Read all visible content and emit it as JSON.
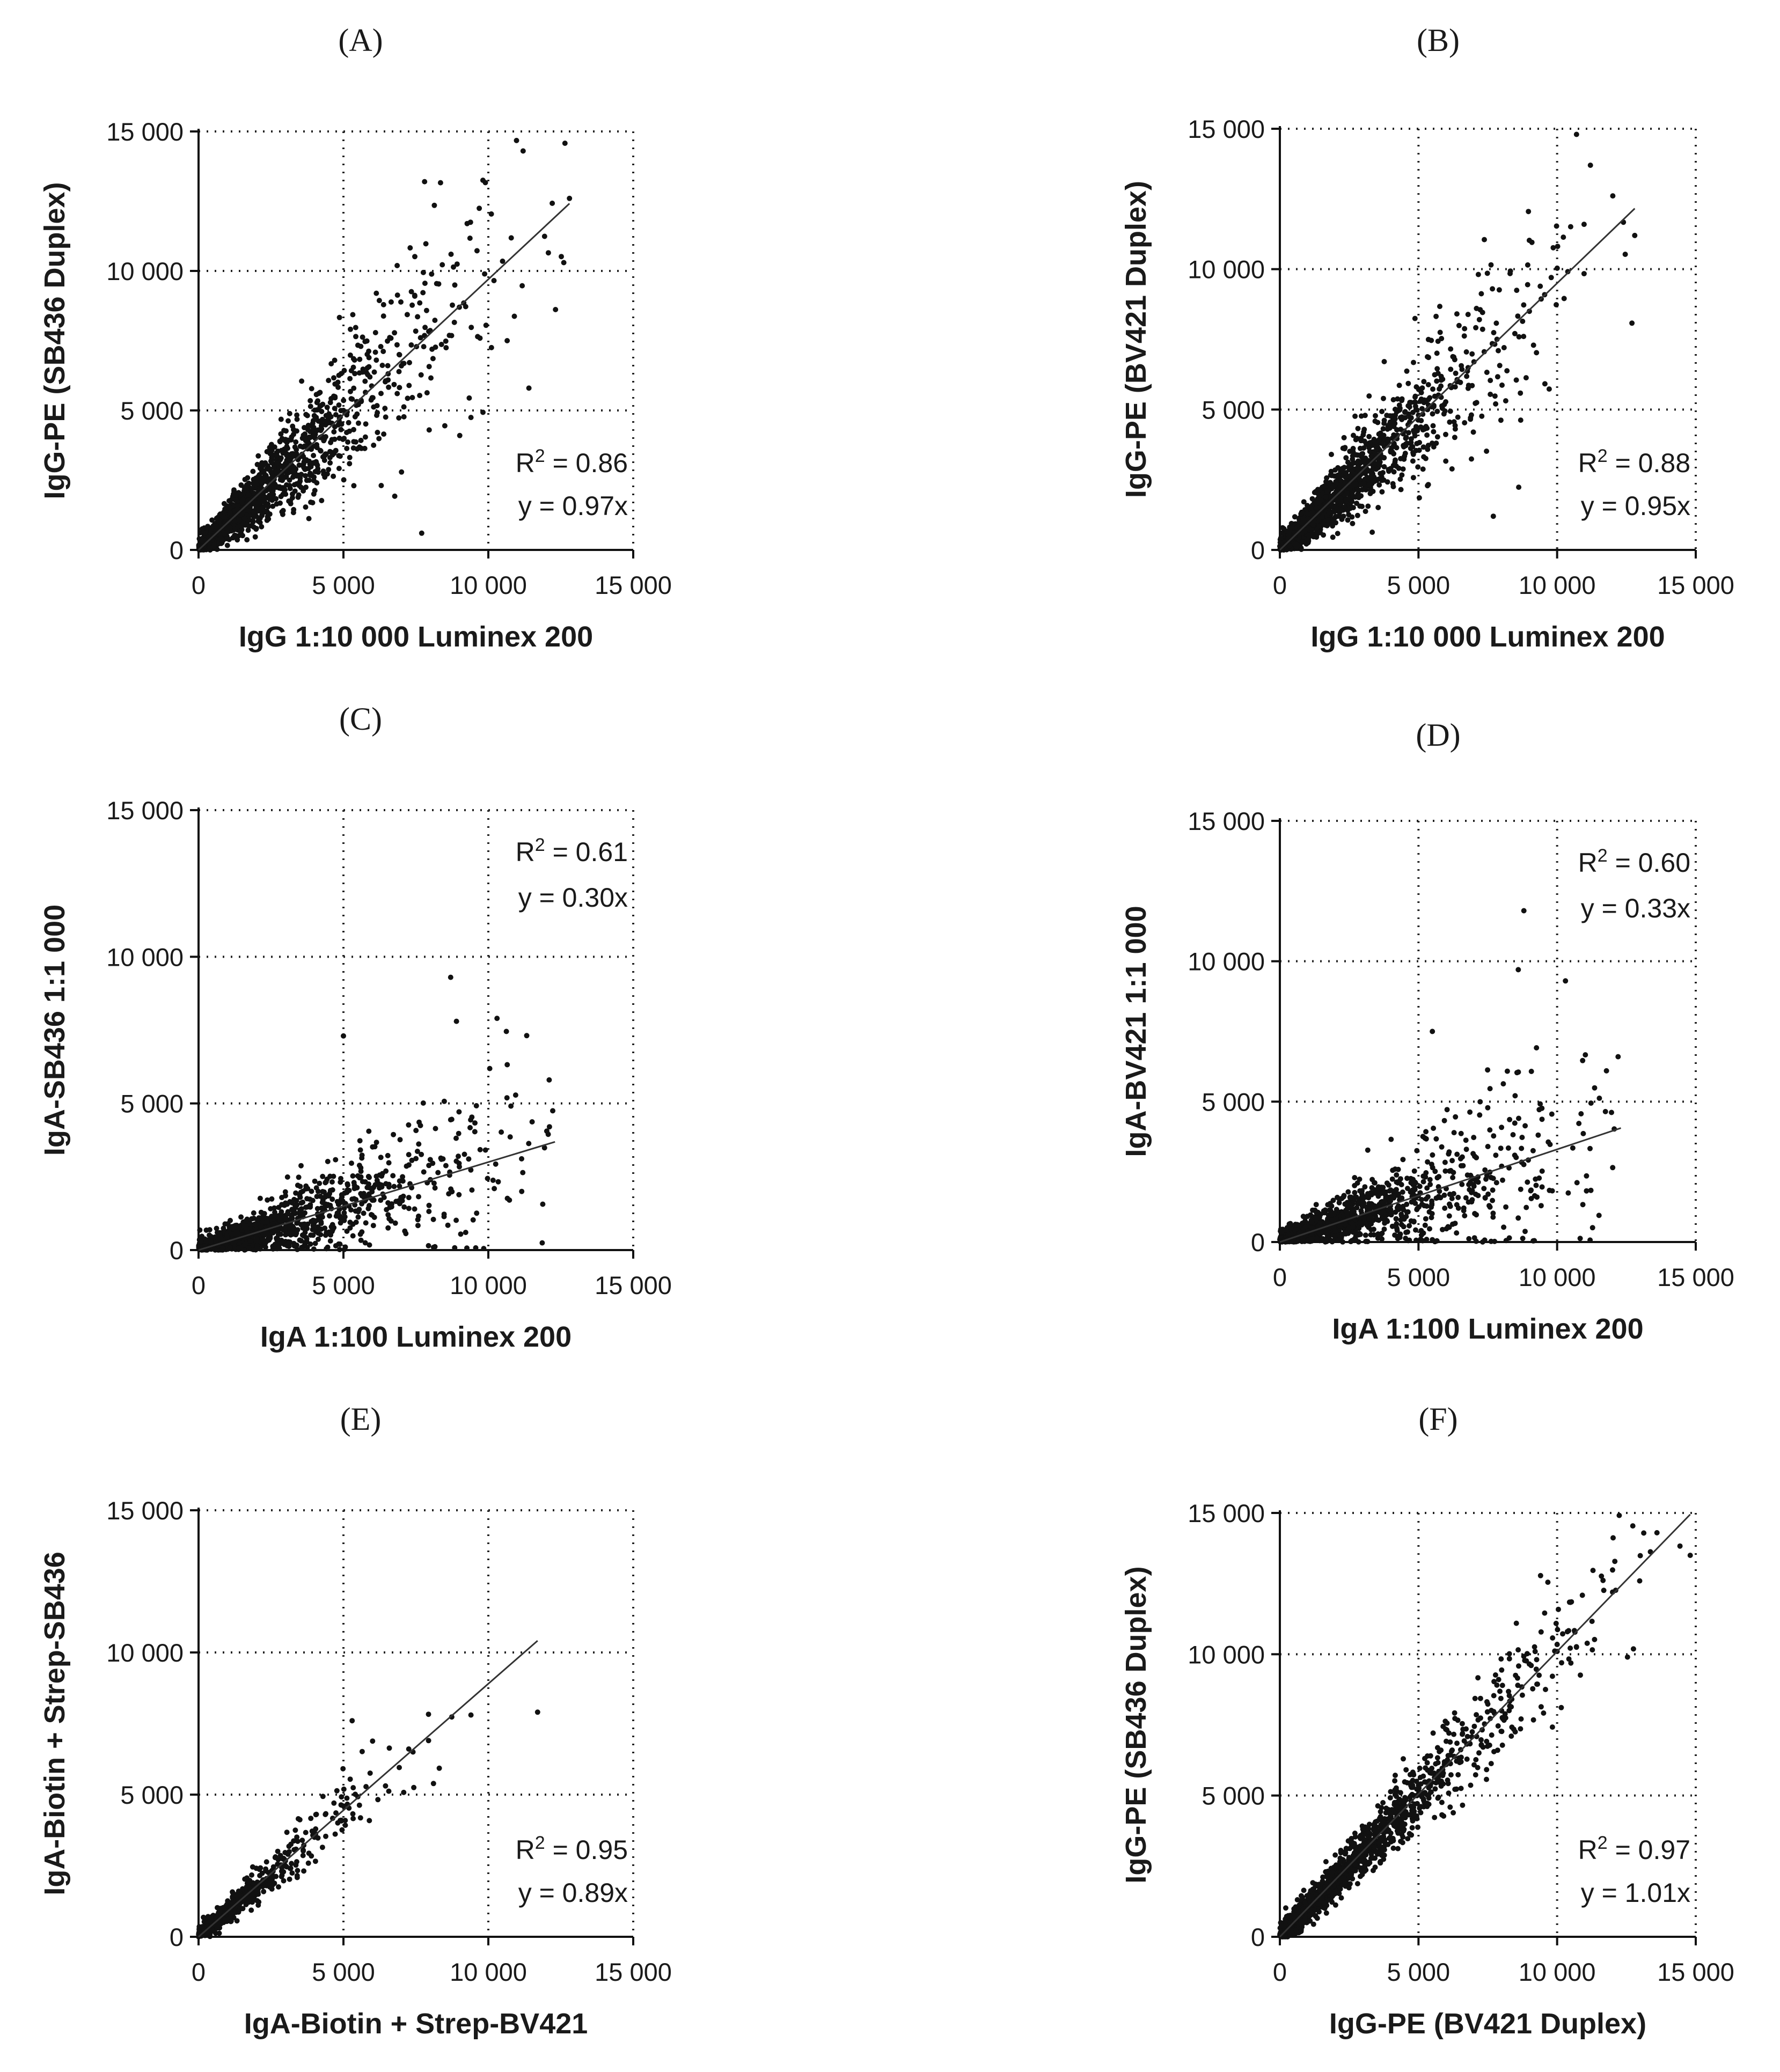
{
  "figure_name": "Six scatter plots comparing immunoassay measurements",
  "chart_data": [
    {
      "type": "scatter",
      "panel": "(A)",
      "xlabel": "IgG 1:10 000 Luminex 200",
      "ylabel": "IgG-PE (SB436 Duplex)",
      "xlim": [
        0,
        15000
      ],
      "ylim": [
        0,
        15000
      ],
      "xticks": [
        0,
        5000,
        10000,
        15000
      ],
      "yticks": [
        0,
        5000,
        10000,
        15000
      ],
      "tick_labels": [
        "0",
        "5 000",
        "10 000",
        "15 000"
      ],
      "r2_text": " = 0.86",
      "eq_text": "y = 0.97x",
      "slope": 0.97,
      "fit_range": [
        0,
        12800
      ],
      "point_spread": 0.25,
      "stat_position": "bottom-right",
      "n_points": 1500,
      "x_max": 12800,
      "x_scale": 2600,
      "approx_points": [
        [
          200,
          150
        ],
        [
          1500,
          1700
        ],
        [
          3000,
          3100
        ],
        [
          5000,
          5000
        ],
        [
          7000,
          6600
        ],
        [
          9000,
          8700
        ],
        [
          7800,
          13200
        ],
        [
          11200,
          14300
        ],
        [
          12800,
          12600
        ],
        [
          11400,
          5800
        ],
        [
          7700,
          600
        ]
      ]
    },
    {
      "type": "scatter",
      "panel": "(B)",
      "xlabel": "IgG 1:10 000 Luminex 200",
      "ylabel": "IgG-PE (BV421 Duplex)",
      "xlim": [
        0,
        15000
      ],
      "ylim": [
        0,
        15000
      ],
      "xticks": [
        0,
        5000,
        10000,
        15000
      ],
      "yticks": [
        0,
        5000,
        10000,
        15000
      ],
      "tick_labels": [
        "0",
        "5 000",
        "10 000",
        "15 000"
      ],
      "r2_text": " = 0.88",
      "eq_text": "y = 0.95x",
      "slope": 0.95,
      "fit_range": [
        0,
        12800
      ],
      "point_spread": 0.24,
      "stat_position": "bottom-right",
      "n_points": 1500,
      "x_max": 12800,
      "x_scale": 2600,
      "approx_points": [
        [
          200,
          150
        ],
        [
          1500,
          1500
        ],
        [
          3000,
          2900
        ],
        [
          5000,
          4800
        ],
        [
          7000,
          6700
        ],
        [
          9000,
          8500
        ],
        [
          10700,
          14800
        ],
        [
          11200,
          13700
        ],
        [
          12800,
          11200
        ],
        [
          7700,
          1200
        ]
      ]
    },
    {
      "type": "scatter",
      "panel": "(C)",
      "xlabel": "IgA 1:100 Luminex 200",
      "ylabel": "IgA-SB436 1:1 000",
      "xlim": [
        0,
        15000
      ],
      "ylim": [
        0,
        15000
      ],
      "xticks": [
        0,
        5000,
        10000,
        15000
      ],
      "yticks": [
        0,
        5000,
        10000,
        15000
      ],
      "tick_labels": [
        "0",
        "5 000",
        "10 000",
        "15 000"
      ],
      "r2_text": " = 0.61",
      "eq_text": "y = 0.30x",
      "slope": 0.3,
      "fit_range": [
        0,
        12300
      ],
      "point_spread": 0.55,
      "stat_position": "top-right",
      "n_points": 1200,
      "x_max": 12300,
      "x_scale": 3000,
      "approx_points": [
        [
          500,
          100
        ],
        [
          2000,
          400
        ],
        [
          4000,
          1000
        ],
        [
          6000,
          1700
        ],
        [
          8000,
          2400
        ],
        [
          8700,
          9300
        ],
        [
          8900,
          7800
        ],
        [
          10300,
          7900
        ],
        [
          12100,
          5800
        ],
        [
          5000,
          7300
        ]
      ]
    },
    {
      "type": "scatter",
      "panel": "(D)",
      "xlabel": "IgA 1:100 Luminex 200",
      "ylabel": "IgA-BV421 1:1 000",
      "xlim": [
        0,
        15000
      ],
      "ylim": [
        0,
        15000
      ],
      "xticks": [
        0,
        5000,
        10000,
        15000
      ],
      "yticks": [
        0,
        5000,
        10000,
        15000
      ],
      "tick_labels": [
        "0",
        "5 000",
        "10 000",
        "15 000"
      ],
      "r2_text": " = 0.60",
      "eq_text": "y = 0.33x",
      "slope": 0.33,
      "fit_range": [
        0,
        12300
      ],
      "point_spread": 0.55,
      "stat_position": "top-right",
      "n_points": 1200,
      "x_max": 12300,
      "x_scale": 3000,
      "approx_points": [
        [
          500,
          100
        ],
        [
          2000,
          400
        ],
        [
          4000,
          1100
        ],
        [
          6000,
          1900
        ],
        [
          8000,
          2700
        ],
        [
          8800,
          11800
        ],
        [
          8600,
          9700
        ],
        [
          10300,
          9300
        ],
        [
          12200,
          6600
        ],
        [
          5500,
          7500
        ]
      ]
    },
    {
      "type": "scatter",
      "panel": "(E)",
      "xlabel": "IgA-Biotin + Strep-BV421",
      "ylabel": "IgA-Biotin + Strep-SB436",
      "xlim": [
        0,
        15000
      ],
      "ylim": [
        0,
        15000
      ],
      "xticks": [
        0,
        5000,
        10000,
        15000
      ],
      "yticks": [
        0,
        5000,
        10000,
        15000
      ],
      "tick_labels": [
        "0",
        "5 000",
        "10 000",
        "15 000"
      ],
      "r2_text": " = 0.95",
      "eq_text": "y = 0.89x",
      "slope": 0.89,
      "fit_range": [
        0,
        11700
      ],
      "point_spread": 0.14,
      "stat_position": "bottom-right",
      "n_points": 500,
      "x_max": 11700,
      "x_scale": 1700,
      "approx_points": [
        [
          200,
          200
        ],
        [
          1000,
          900
        ],
        [
          2500,
          2200
        ],
        [
          4000,
          3500
        ],
        [
          5000,
          4600
        ],
        [
          5300,
          7600
        ],
        [
          7400,
          6500
        ],
        [
          9400,
          7800
        ],
        [
          11700,
          7900
        ]
      ]
    },
    {
      "type": "scatter",
      "panel": "(F)",
      "xlabel": "IgG-PE (BV421 Duplex)",
      "ylabel": "IgG-PE (SB436 Duplex)",
      "xlim": [
        0,
        15000
      ],
      "ylim": [
        0,
        15000
      ],
      "xticks": [
        0,
        5000,
        10000,
        15000
      ],
      "yticks": [
        0,
        5000,
        10000,
        15000
      ],
      "tick_labels": [
        "0",
        "5 000",
        "10 000",
        "15 000"
      ],
      "r2_text": " = 0.97",
      "eq_text": "y = 1.01x",
      "slope": 1.01,
      "fit_range": [
        0,
        14800
      ],
      "point_spread": 0.12,
      "stat_position": "bottom-right",
      "n_points": 1500,
      "x_max": 14800,
      "x_scale": 3000,
      "approx_points": [
        [
          200,
          200
        ],
        [
          2000,
          2000
        ],
        [
          4000,
          4100
        ],
        [
          6000,
          6100
        ],
        [
          8000,
          8000
        ],
        [
          10000,
          10100
        ],
        [
          12000,
          12200
        ],
        [
          13600,
          14300
        ],
        [
          14800,
          13500
        ]
      ]
    }
  ]
}
